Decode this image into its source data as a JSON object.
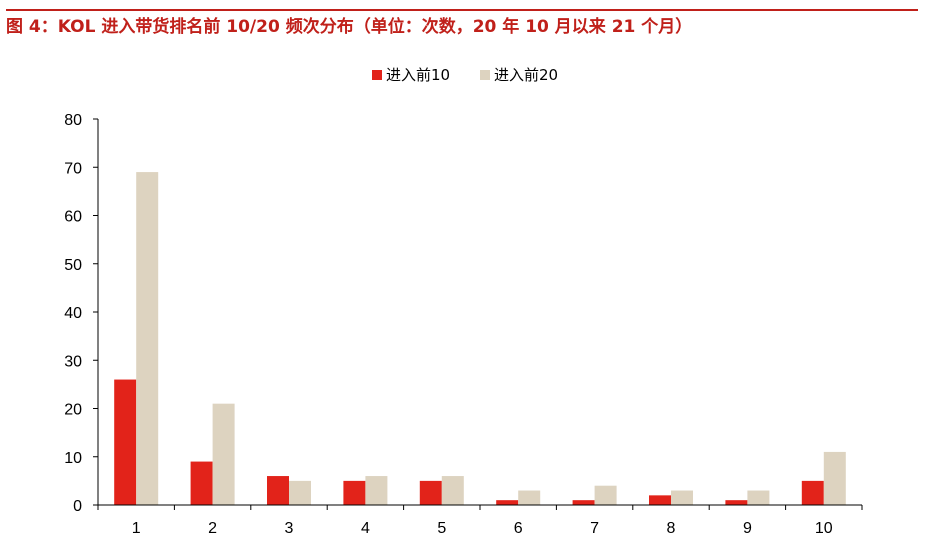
{
  "title": "图 4：KOL 进入带货排名前 10/20 频次分布（单位：次数，20 年 10 月以来 21 个月）",
  "colors": {
    "title": "#c0201a",
    "series1": "#e2231a",
    "series2": "#ddd3c0",
    "axis": "#000000"
  },
  "chart_data": {
    "type": "bar",
    "categories": [
      "1",
      "2",
      "3",
      "4",
      "5",
      "6",
      "7",
      "8",
      "9",
      "10"
    ],
    "series": [
      {
        "name": "进入前10",
        "values": [
          26,
          9,
          6,
          5,
          5,
          1,
          1,
          2,
          1,
          5
        ]
      },
      {
        "name": "进入前20",
        "values": [
          69,
          21,
          5,
          6,
          6,
          3,
          4,
          3,
          3,
          11
        ]
      }
    ],
    "ylim": [
      0,
      80
    ],
    "yticks": [
      "0",
      "10",
      "20",
      "30",
      "40",
      "50",
      "60",
      "70",
      "80"
    ],
    "legend_position": "top-center",
    "grid": false
  }
}
